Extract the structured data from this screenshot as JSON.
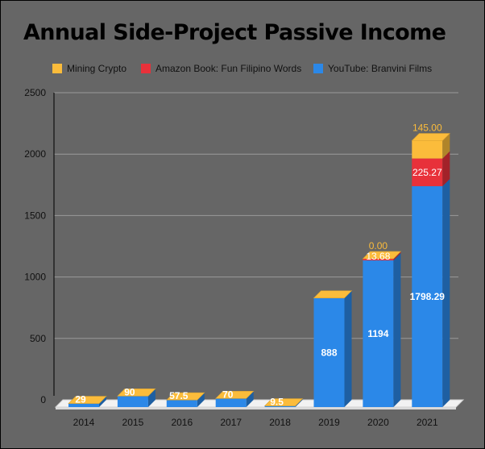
{
  "chart_data": {
    "type": "bar",
    "stacked": true,
    "style": "3d",
    "title": "Annual Side-Project Passive Income",
    "xlabel": "",
    "ylabel": "",
    "categories": [
      "2014",
      "2015",
      "2016",
      "2017",
      "2018",
      "2019",
      "2020",
      "2021"
    ],
    "ylim": [
      0,
      2500
    ],
    "yticks": [
      "0",
      "500",
      "1000",
      "1500",
      "2000",
      "2500"
    ],
    "grid": true,
    "legend_position": "top",
    "series": [
      {
        "name": "YouTube: Branvini Films",
        "color": "#2b88e8",
        "values": [
          29,
          90,
          57.5,
          70,
          9.5,
          888,
          1194,
          1798.29
        ],
        "labels": [
          "29",
          "90",
          "57.5",
          "70",
          "9.5",
          "888",
          "1194",
          "1798.29"
        ]
      },
      {
        "name": "Amazon Book: Fun Filipino Words",
        "color": "#e8313a",
        "values": [
          0,
          0,
          0,
          0,
          0,
          0,
          13.68,
          225.27
        ],
        "labels": [
          "",
          "",
          "",
          "",
          "",
          "",
          "13.68",
          "225.27"
        ]
      },
      {
        "name": "Mining Crypto",
        "color": "#fbbc3b",
        "values": [
          0,
          0,
          0,
          0,
          0,
          0,
          0,
          145
        ],
        "labels": [
          "",
          "",
          "",
          "",
          "",
          "",
          "0.00",
          "145.00"
        ]
      }
    ],
    "legend_order": [
      2,
      1,
      0
    ]
  }
}
